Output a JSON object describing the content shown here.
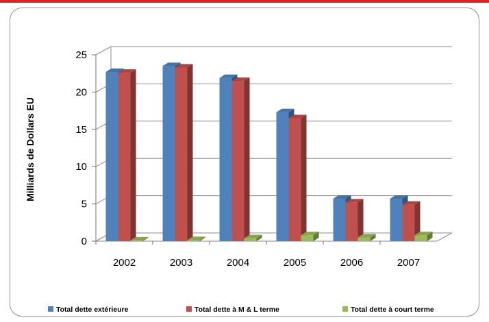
{
  "chart_data": {
    "type": "bar",
    "ylabel": "Milliards de Dollars EU",
    "xlabel": "",
    "ylim": [
      0,
      25
    ],
    "yticks": [
      "0",
      "5",
      "10",
      "15",
      "20",
      "25"
    ],
    "categories": [
      "2002",
      "2003",
      "2004",
      "2005",
      "2006",
      "2007"
    ],
    "series": [
      {
        "name": "Total dette extérieure",
        "color": "#4f81bd",
        "values": [
          22.7,
          23.5,
          21.9,
          17.3,
          5.7,
          5.7
        ]
      },
      {
        "name": "Total dette à M & L terme",
        "color": "#c0504d",
        "values": [
          22.6,
          23.3,
          21.5,
          16.5,
          5.2,
          4.9
        ]
      },
      {
        "name": "Total dette à court  terme",
        "color": "#9bbb59",
        "values": [
          0.1,
          0.15,
          0.4,
          0.8,
          0.5,
          0.8
        ]
      }
    ],
    "grid": true,
    "legend": "bottom"
  }
}
